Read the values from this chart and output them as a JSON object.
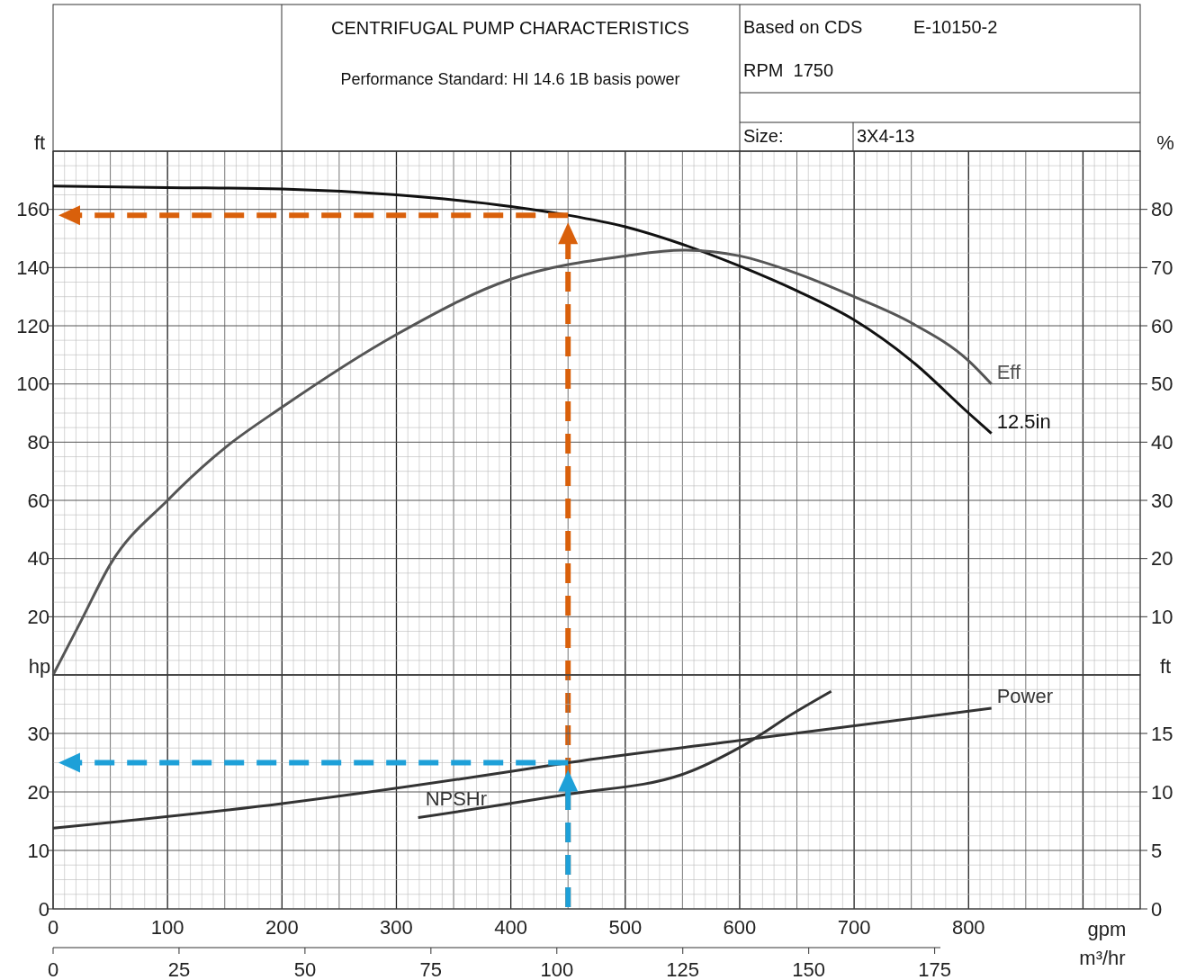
{
  "chart_data": [
    {
      "type": "line",
      "title": "CENTRIFUGAL PUMP CHARACTERISTICS",
      "subtitle": "Performance Standard: HI 14.6 1B basis power",
      "annotations": [
        "Based on CDS",
        "E-10150-2",
        "RPM  1750",
        "Size:",
        "3X4-13"
      ],
      "ylabel": "ft",
      "y2label": "%",
      "xlim": [
        0,
        950
      ],
      "xticks": [
        0,
        100,
        200,
        300,
        400,
        500,
        600,
        700,
        800
      ],
      "ylim": [
        0,
        180
      ],
      "yticks": [
        20,
        40,
        60,
        80,
        100,
        120,
        140,
        160
      ],
      "y2lim": [
        0,
        90
      ],
      "y2ticks": [
        10,
        20,
        30,
        40,
        50,
        60,
        70,
        80
      ],
      "tick_labels": "y",
      "grid": true,
      "marker": "none",
      "line_style": "solid",
      "series": [
        {
          "name": "12.5in",
          "color": "#111111",
          "x": [
            0,
            100,
            200,
            300,
            400,
            450,
            500,
            550,
            600,
            650,
            700,
            750,
            800,
            820
          ],
          "values": [
            168,
            167.5,
            167,
            165,
            161,
            158,
            154,
            148,
            140.5,
            132,
            122,
            108,
            90,
            83
          ]
        },
        {
          "name": "Eff",
          "color": "#555555",
          "axis": "y2",
          "x": [
            0,
            25,
            50,
            100,
            150,
            200,
            300,
            400,
            500,
            550,
            600,
            650,
            700,
            750,
            800,
            820
          ],
          "values": [
            0,
            9.5,
            19,
            30,
            39,
            46,
            58.5,
            68,
            72,
            73,
            72,
            69,
            65,
            60.5,
            54,
            50
          ]
        }
      ],
      "ref_lines": [
        {
          "axis": "x",
          "value": 450,
          "color": "#d9600b",
          "line_style": "dashed"
        },
        {
          "axis": "y",
          "value": 158,
          "color": "#d9600b",
          "line_style": "dashed"
        }
      ]
    },
    {
      "type": "line",
      "xlabel": "gpm",
      "x2label": "m³/hr",
      "ylabel": "hp",
      "y2label": "ft",
      "xlim": [
        0,
        950
      ],
      "xticks": [
        0,
        100,
        200,
        300,
        400,
        500,
        600,
        700,
        800
      ],
      "x2lim": [
        0,
        215.8
      ],
      "x2ticks": [
        0,
        25,
        50,
        75,
        100,
        125,
        150,
        175
      ],
      "ylim": [
        0,
        40
      ],
      "yticks": [
        0,
        10,
        20,
        30
      ],
      "y2lim": [
        0,
        20
      ],
      "y2ticks": [
        0,
        5,
        10,
        15
      ],
      "grid": true,
      "marker": "none",
      "line_style": "solid",
      "series": [
        {
          "name": "Power",
          "color": "#333333",
          "x": [
            0,
            200,
            400,
            450,
            600,
            820
          ],
          "values": [
            13.8,
            18,
            23.5,
            25,
            28.8,
            34.3
          ]
        },
        {
          "name": "NPSHr",
          "color": "#333333",
          "axis": "y2",
          "x": [
            319,
            450,
            550,
            600,
            650,
            680
          ],
          "values": [
            7.8,
            9.8,
            11.5,
            13.8,
            16.9,
            18.6
          ]
        }
      ],
      "ref_lines": [
        {
          "axis": "x",
          "value": 450,
          "color": "#1ea0d8",
          "line_style": "dashed"
        },
        {
          "axis": "y",
          "value": 25,
          "color": "#1ea0d8",
          "line_style": "dashed"
        }
      ]
    }
  ]
}
